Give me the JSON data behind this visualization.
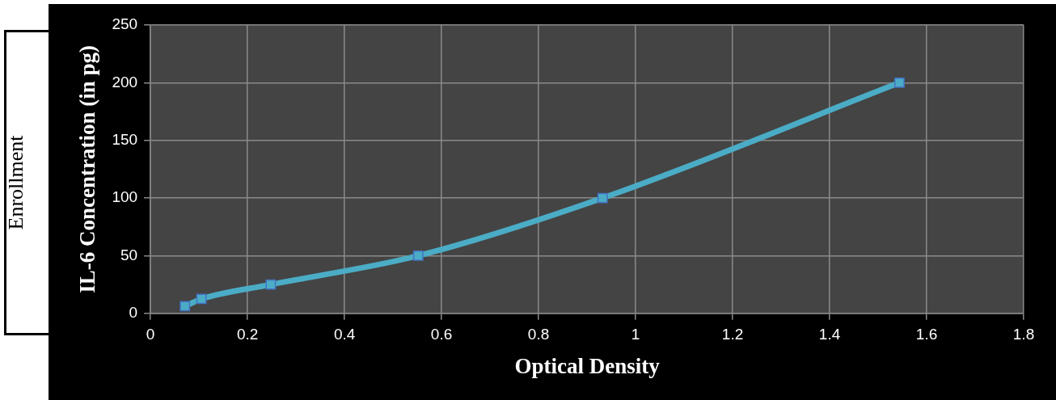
{
  "chart_data": {
    "type": "line",
    "xlabel": "Optical Density",
    "ylabel": "IL-6 Concentration (in pg)",
    "annotations": [
      "Enrollment"
    ],
    "x": [
      0.071,
      0.105,
      0.248,
      0.552,
      0.932,
      1.544
    ],
    "series": [
      {
        "color": "#4bacc6",
        "values": [
          6.25,
          12.5,
          25,
          50,
          100,
          200
        ]
      }
    ],
    "xlim": [
      0,
      1.8
    ],
    "xticks": [
      0,
      0.2,
      0.4,
      0.6,
      0.8,
      1,
      1.2,
      1.4,
      1.6,
      1.8
    ],
    "ylim": [
      0,
      250
    ],
    "yticks": [
      0,
      50,
      100,
      150,
      200,
      250
    ],
    "grid": true,
    "legend": false,
    "marker": "square",
    "line_style": "solid"
  }
}
